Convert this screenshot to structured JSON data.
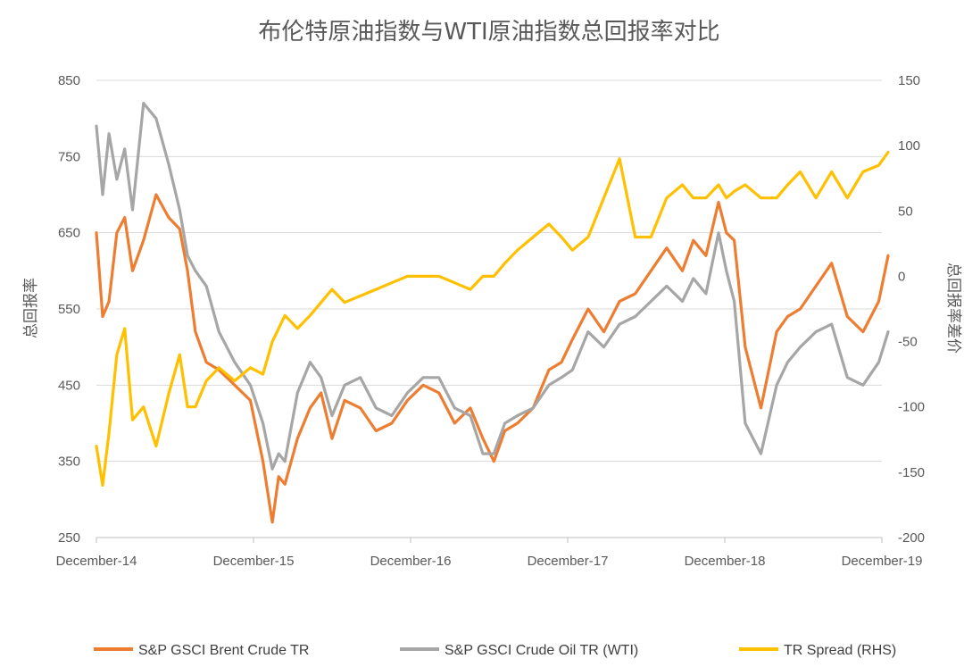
{
  "chart_data": {
    "type": "line",
    "title": "布伦特原油指数与WTI原油指数总回报率对比",
    "ylabel": "总回报率",
    "y2label": "总回报率差价",
    "x_ticks": [
      "December-14",
      "December-15",
      "December-16",
      "December-17",
      "December-18",
      "December-19"
    ],
    "x_range": [
      "2014-12",
      "2019-12"
    ],
    "ylim": [
      250,
      850
    ],
    "y_ticks": [
      250,
      350,
      450,
      550,
      650,
      750,
      850
    ],
    "y2lim": [
      -200,
      150
    ],
    "y2_ticks": [
      -200,
      -150,
      -100,
      -50,
      0,
      50,
      100,
      150
    ],
    "grid": true,
    "legend_position": "bottom",
    "series": [
      {
        "name": "S&P GSCI Brent Crude TR",
        "axis": "left",
        "color": "#ed7d31",
        "x": [
          2014.92,
          2014.96,
          2015.0,
          2015.05,
          2015.1,
          2015.15,
          2015.22,
          2015.3,
          2015.38,
          2015.45,
          2015.5,
          2015.55,
          2015.62,
          2015.7,
          2015.8,
          2015.9,
          2015.98,
          2016.04,
          2016.08,
          2016.12,
          2016.2,
          2016.28,
          2016.35,
          2016.42,
          2016.5,
          2016.6,
          2016.7,
          2016.8,
          2016.9,
          2017.0,
          2017.1,
          2017.2,
          2017.3,
          2017.38,
          2017.45,
          2017.52,
          2017.6,
          2017.7,
          2017.8,
          2017.88,
          2017.95,
          2018.05,
          2018.15,
          2018.25,
          2018.35,
          2018.45,
          2018.55,
          2018.65,
          2018.72,
          2018.8,
          2018.88,
          2018.93,
          2018.98,
          2019.05,
          2019.15,
          2019.25,
          2019.32,
          2019.4,
          2019.5,
          2019.6,
          2019.7,
          2019.8,
          2019.9,
          2019.96
        ],
        "values": [
          650,
          540,
          560,
          650,
          670,
          600,
          640,
          700,
          670,
          655,
          600,
          520,
          480,
          470,
          450,
          430,
          350,
          270,
          330,
          320,
          380,
          420,
          440,
          380,
          430,
          420,
          390,
          400,
          430,
          450,
          440,
          400,
          420,
          380,
          350,
          390,
          400,
          420,
          470,
          480,
          510,
          550,
          520,
          560,
          570,
          600,
          630,
          600,
          640,
          620,
          690,
          650,
          640,
          500,
          420,
          520,
          540,
          550,
          580,
          610,
          540,
          520,
          560,
          620
        ]
      },
      {
        "name": "S&P GSCI Crude Oil TR (WTI)",
        "axis": "left",
        "color": "#a6a6a6",
        "x": [
          2014.92,
          2014.96,
          2015.0,
          2015.05,
          2015.1,
          2015.15,
          2015.22,
          2015.3,
          2015.38,
          2015.45,
          2015.5,
          2015.55,
          2015.62,
          2015.7,
          2015.8,
          2015.9,
          2015.98,
          2016.04,
          2016.08,
          2016.12,
          2016.2,
          2016.28,
          2016.35,
          2016.42,
          2016.5,
          2016.6,
          2016.7,
          2016.8,
          2016.9,
          2017.0,
          2017.1,
          2017.2,
          2017.3,
          2017.38,
          2017.45,
          2017.52,
          2017.6,
          2017.7,
          2017.8,
          2017.88,
          2017.95,
          2018.05,
          2018.15,
          2018.25,
          2018.35,
          2018.45,
          2018.55,
          2018.65,
          2018.72,
          2018.8,
          2018.88,
          2018.93,
          2018.98,
          2019.05,
          2019.15,
          2019.25,
          2019.32,
          2019.4,
          2019.5,
          2019.6,
          2019.7,
          2019.8,
          2019.9,
          2019.96
        ],
        "values": [
          790,
          700,
          780,
          720,
          760,
          680,
          820,
          800,
          740,
          680,
          620,
          600,
          580,
          520,
          480,
          450,
          400,
          340,
          360,
          350,
          440,
          480,
          460,
          410,
          450,
          460,
          420,
          410,
          440,
          460,
          460,
          420,
          410,
          360,
          360,
          400,
          410,
          420,
          450,
          460,
          470,
          520,
          500,
          530,
          540,
          560,
          580,
          560,
          590,
          570,
          650,
          600,
          560,
          400,
          360,
          450,
          480,
          500,
          520,
          530,
          460,
          450,
          480,
          520
        ]
      },
      {
        "name": "TR Spread (RHS)",
        "axis": "right",
        "color": "#ffc000",
        "x": [
          2014.92,
          2014.96,
          2015.0,
          2015.05,
          2015.1,
          2015.15,
          2015.22,
          2015.3,
          2015.38,
          2015.45,
          2015.5,
          2015.55,
          2015.62,
          2015.7,
          2015.8,
          2015.9,
          2015.98,
          2016.04,
          2016.08,
          2016.12,
          2016.2,
          2016.28,
          2016.35,
          2016.42,
          2016.5,
          2016.6,
          2016.7,
          2016.8,
          2016.9,
          2017.0,
          2017.1,
          2017.2,
          2017.3,
          2017.38,
          2017.45,
          2017.52,
          2017.6,
          2017.7,
          2017.8,
          2017.88,
          2017.95,
          2018.05,
          2018.15,
          2018.25,
          2018.35,
          2018.45,
          2018.55,
          2018.65,
          2018.72,
          2018.8,
          2018.88,
          2018.93,
          2018.98,
          2019.05,
          2019.15,
          2019.25,
          2019.32,
          2019.4,
          2019.5,
          2019.6,
          2019.7,
          2019.8,
          2019.9,
          2019.96
        ],
        "values": [
          -130,
          -160,
          -120,
          -60,
          -40,
          -110,
          -100,
          -130,
          -90,
          -60,
          -100,
          -100,
          -80,
          -70,
          -80,
          -70,
          -75,
          -50,
          -40,
          -30,
          -40,
          -30,
          -20,
          -10,
          -20,
          -15,
          -10,
          -5,
          0,
          0,
          0,
          -5,
          -10,
          0,
          0,
          10,
          20,
          30,
          40,
          30,
          20,
          30,
          60,
          90,
          30,
          30,
          60,
          70,
          60,
          60,
          70,
          60,
          65,
          70,
          60,
          60,
          70,
          80,
          60,
          80,
          60,
          80,
          85,
          95
        ]
      }
    ]
  }
}
